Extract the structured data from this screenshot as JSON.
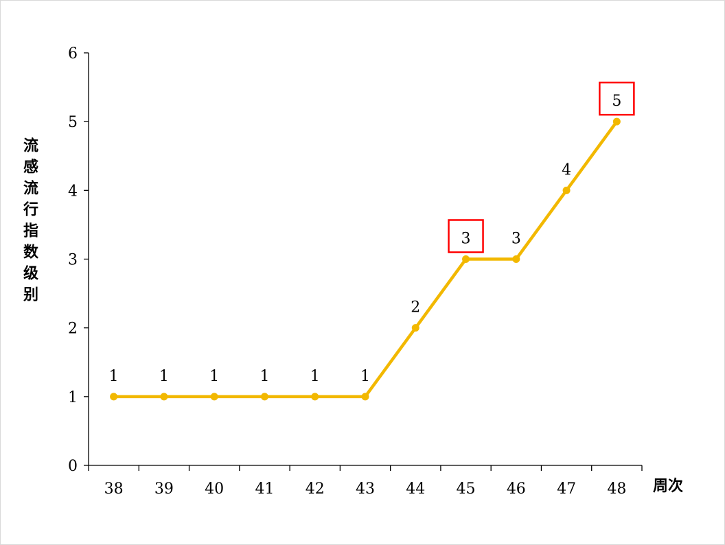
{
  "chart_data": {
    "type": "line",
    "xlabel": "周次",
    "ylabel": "流感流行指数级别",
    "categories": [
      "38",
      "39",
      "40",
      "41",
      "42",
      "43",
      "44",
      "45",
      "46",
      "47",
      "48"
    ],
    "values": [
      1,
      1,
      1,
      1,
      1,
      1,
      2,
      3,
      3,
      4,
      5
    ],
    "data_labels": [
      "1",
      "1",
      "1",
      "1",
      "1",
      "1",
      "2",
      "3",
      "3",
      "4",
      "5"
    ],
    "highlighted_labels": [
      "45",
      "48"
    ],
    "ylim": [
      0,
      6
    ],
    "yticks": [
      "0",
      "1",
      "2",
      "3",
      "4",
      "5",
      "6"
    ],
    "grid": false,
    "legend": "none",
    "colors": {
      "line": "#F2B800",
      "highlight_box": "#FF0000",
      "axis": "#000000"
    }
  }
}
